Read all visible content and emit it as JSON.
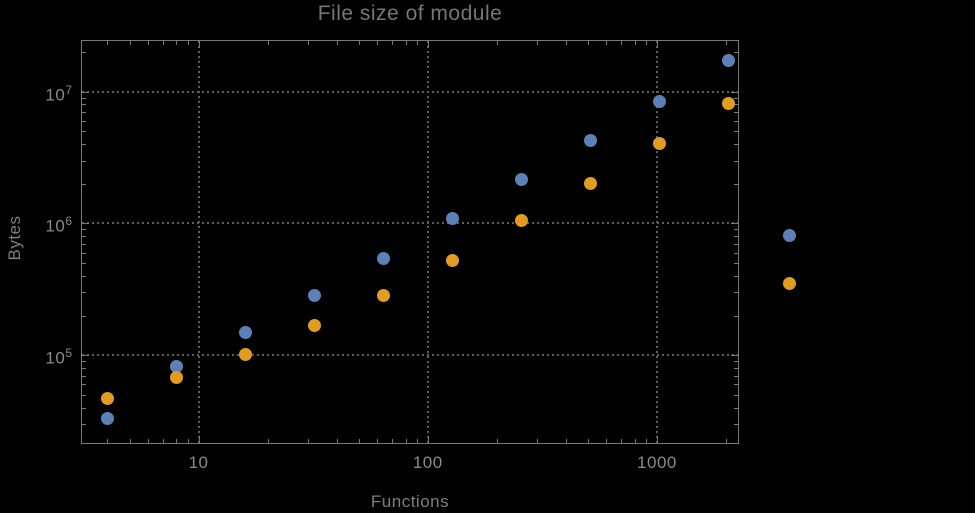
{
  "title": "File size of module",
  "chart_data": {
    "type": "scatter",
    "title": "File size of module",
    "xlabel": "Functions",
    "ylabel": "Bytes",
    "xscale": "log",
    "yscale": "log",
    "xlim": [
      3.07,
      2280
    ],
    "ylim": [
      21200,
      24650000
    ],
    "grid": "dotted-at-major-ticks",
    "frame": true,
    "x_ticks": {
      "major": [
        {
          "value": 10,
          "label": "10"
        },
        {
          "value": 100,
          "label": "100"
        },
        {
          "value": 1000,
          "label": "1000"
        }
      ],
      "minor": [
        4,
        5,
        6,
        7,
        8,
        9,
        20,
        30,
        40,
        50,
        60,
        70,
        80,
        90,
        200,
        300,
        400,
        500,
        600,
        700,
        800,
        900,
        2000
      ]
    },
    "y_ticks": {
      "major": [
        {
          "value": 100000,
          "mantissa": "10",
          "exponent": "5"
        },
        {
          "value": 1000000,
          "mantissa": "10",
          "exponent": "6"
        },
        {
          "value": 10000000,
          "mantissa": "10",
          "exponent": "7"
        }
      ],
      "minor": [
        30000,
        40000,
        50000,
        60000,
        70000,
        80000,
        90000,
        200000,
        300000,
        400000,
        500000,
        600000,
        700000,
        800000,
        900000,
        2000000,
        3000000,
        4000000,
        5000000,
        6000000,
        7000000,
        8000000,
        9000000,
        20000000
      ]
    },
    "series": [
      {
        "name": "series-1-blue",
        "color": "#5E81B5",
        "x": [
          4,
          8,
          16,
          32,
          64,
          128,
          256,
          512,
          1024,
          2048
        ],
        "y": [
          33000,
          82000,
          148000,
          283000,
          540000,
          1090000,
          2140000,
          4250000,
          8450000,
          17200000
        ]
      },
      {
        "name": "series-2-orange",
        "color": "#E19C24",
        "x": [
          4,
          8,
          16,
          32,
          64,
          128,
          256,
          512,
          1024,
          2048
        ],
        "y": [
          47000,
          68000,
          102000,
          167000,
          285000,
          520000,
          1050000,
          2000000,
          4060000,
          8100000
        ]
      }
    ],
    "legend": {
      "labels_visible": false,
      "markers": [
        {
          "series": "series-1-blue",
          "color": "#5E81B5",
          "approx_value": 820000
        },
        {
          "series": "series-2-orange",
          "color": "#E19C24",
          "approx_value": 356000
        }
      ]
    }
  },
  "colors": {
    "background": "#000000",
    "frame": "#787878",
    "gridline": "#5e5e5e",
    "title_text": "#767676",
    "tick_text": "#8a8a8a",
    "series1": "#5E81B5",
    "series2": "#E19C24"
  }
}
